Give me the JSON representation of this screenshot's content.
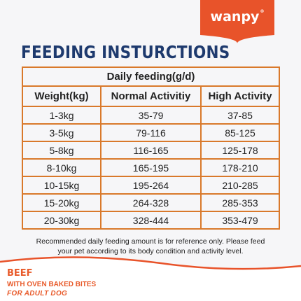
{
  "brand": {
    "logo_text": "wanpy",
    "registered_mark": "®",
    "banner_color": "#e8532a"
  },
  "title": "FEEDING INSTURCTIONS",
  "table": {
    "group_header": "Daily feeding(g/d)",
    "columns": [
      "Weight(kg)",
      "Normal Activitiy",
      "High Activity"
    ],
    "rows": [
      [
        "1-3kg",
        "35-79",
        "37-85"
      ],
      [
        "3-5kg",
        "79-116",
        "85-125"
      ],
      [
        "5-8kg",
        "116-165",
        "125-178"
      ],
      [
        "8-10kg",
        "165-195",
        "178-210"
      ],
      [
        "10-15kg",
        "195-264",
        "210-285"
      ],
      [
        "15-20kg",
        "264-328",
        "285-353"
      ],
      [
        "20-30kg",
        "328-444",
        "353-479"
      ]
    ],
    "border_color": "#d9792b"
  },
  "note": {
    "line1": "Recommended daily feeding amount is for reference only. Please feed",
    "line2": "your pet according to its body condition and activity level."
  },
  "product": {
    "flavor": "BEEF",
    "subtitle": "WITH OVEN BAKED BITES",
    "audience": "FOR ADULT DOG",
    "accent_color": "#e85a2a"
  }
}
